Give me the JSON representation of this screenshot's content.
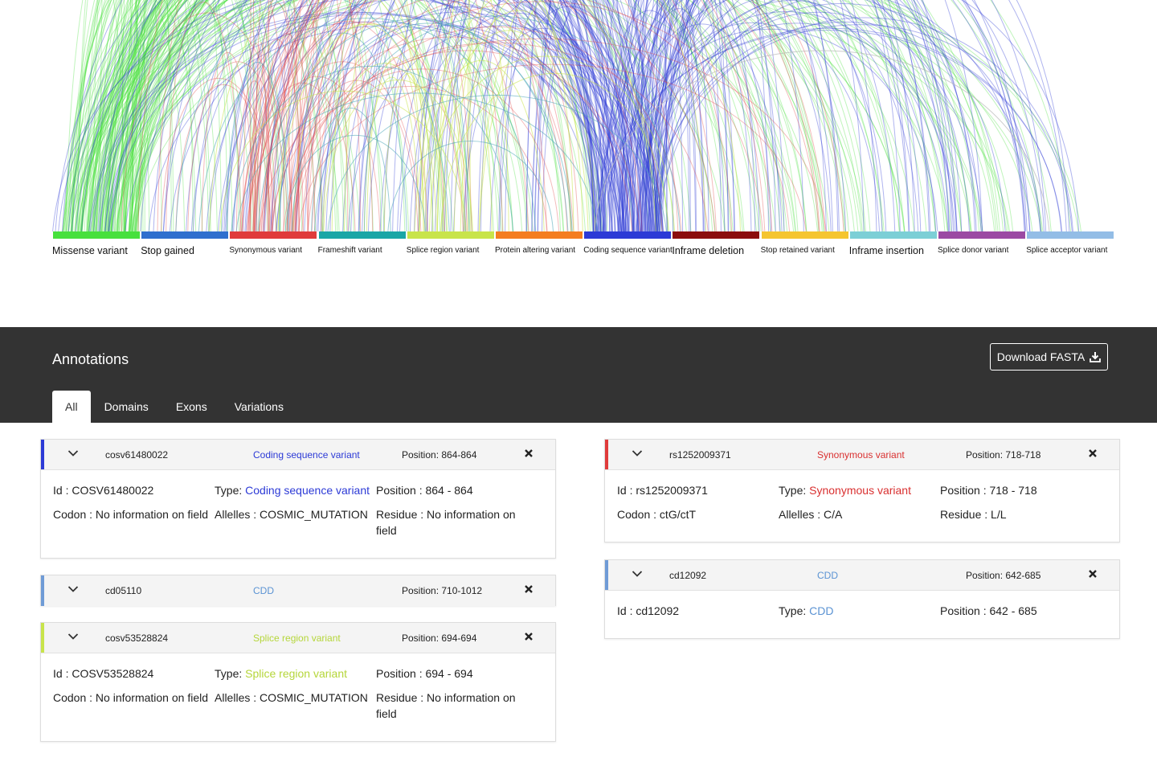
{
  "legend": [
    {
      "label": "Missense variant",
      "color": "#47e03d",
      "big": true
    },
    {
      "label": "Stop gained",
      "color": "#2f6fce",
      "big": true
    },
    {
      "label": "Synonymous variant",
      "color": "#e03b3b",
      "big": false
    },
    {
      "label": "Frameshift variant",
      "color": "#1aa6a6",
      "big": false
    },
    {
      "label": "Splice region variant",
      "color": "#c8e44a",
      "big": false
    },
    {
      "label": "Protein altering variant",
      "color": "#f47d20",
      "big": false
    },
    {
      "label": "Coding sequence variant",
      "color": "#2c3ad6",
      "big": false
    },
    {
      "label": "Inframe deletion",
      "color": "#8b0d0d",
      "big": true
    },
    {
      "label": "Stop retained variant",
      "color": "#f5c530",
      "big": false
    },
    {
      "label": "Inframe insertion",
      "color": "#7ccfd6",
      "big": true
    },
    {
      "label": "Splice donor variant",
      "color": "#9b4aa3",
      "big": false
    },
    {
      "label": "Splice acceptor variant",
      "color": "#93bde6",
      "big": false
    }
  ],
  "annotations": {
    "title": "Annotations",
    "download_label": "Download FASTA",
    "tabs": [
      "All",
      "Domains",
      "Exons",
      "Variations"
    ],
    "active_tab": "All"
  },
  "cards": {
    "c1": {
      "accent": "#2c3ad6",
      "id_short": "cosv61480022",
      "type": "Coding sequence variant",
      "type_color": "#2c3ad6",
      "position": "Position: 864-864",
      "id_line": "Id : COSV61480022",
      "type_label": "Type: ",
      "pos_line": "Position : 864 - 864",
      "codon": "Codon : No information on field",
      "allelles": "Allelles : COSMIC_MUTATION",
      "residue": "Residue : No information on field"
    },
    "c2": {
      "accent": "#6f9bd6",
      "id_short": "cd05110",
      "type": "CDD",
      "type_color": "#5b93d3",
      "position": "Position: 710-1012"
    },
    "c3": {
      "accent": "#c8e44a",
      "id_short": "cosv53528824",
      "type": "Splice region variant",
      "type_color": "#b5d63a",
      "position": "Position: 694-694",
      "id_line": "Id : COSV53528824",
      "type_label": "Type: ",
      "pos_line": "Position : 694 - 694",
      "codon": "Codon : No information on field",
      "allelles": "Allelles : COSMIC_MUTATION",
      "residue": "Residue : No information on field"
    },
    "c4": {
      "accent": "#e03b3b",
      "id_short": "rs1252009371",
      "type": "Synonymous variant",
      "type_color": "#d93030",
      "position": "Position: 718-718",
      "id_line": "Id : rs1252009371",
      "type_label": "Type: ",
      "pos_line": "Position : 718 - 718",
      "codon": "Codon : ctG/ctT",
      "allelles": "Allelles : C/A",
      "residue": "Residue : L/L"
    },
    "c5": {
      "accent": "#6f9bd6",
      "id_short": "cd12092",
      "type": "CDD",
      "type_color": "#5b93d3",
      "position": "Position: 642-685",
      "id_line": "Id : cd12092",
      "type_label": "Type: ",
      "pos_line": "Position : 642 - 685"
    }
  }
}
